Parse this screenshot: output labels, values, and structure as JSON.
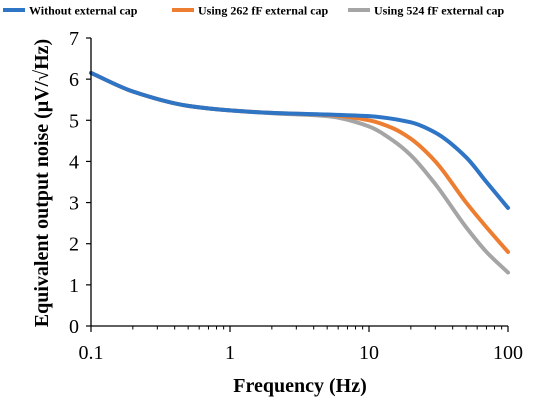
{
  "chart_data": {
    "type": "line",
    "xscale": "log",
    "xlim": [
      0.1,
      100
    ],
    "ylim": [
      0,
      7
    ],
    "xticks": [
      "0.1",
      "1",
      "10",
      "100"
    ],
    "xtick_values": [
      0.1,
      1,
      10,
      100
    ],
    "yticks": [
      "0",
      "1",
      "2",
      "3",
      "4",
      "5",
      "6",
      "7"
    ],
    "ytick_values": [
      0,
      1,
      2,
      3,
      4,
      5,
      6,
      7
    ],
    "xlabel": "Frequency (Hz)",
    "ylabel": "Equivalent output noise (μV/√Hz)",
    "grid": false,
    "legend_position": "top",
    "series": [
      {
        "name": "Without external cap",
        "color": "#2e75c6",
        "x": [
          0.1,
          0.2,
          0.5,
          1,
          2,
          5,
          10,
          20,
          30,
          50,
          70,
          100
        ],
        "y": [
          6.15,
          5.7,
          5.35,
          5.24,
          5.18,
          5.14,
          5.1,
          4.95,
          4.7,
          4.1,
          3.5,
          2.87
        ]
      },
      {
        "name": "Using 262 fF external cap",
        "color": "#ed7d31",
        "x": [
          0.1,
          0.2,
          0.5,
          1,
          2,
          5,
          10,
          15,
          20,
          30,
          50,
          70,
          100
        ],
        "y": [
          6.15,
          5.7,
          5.35,
          5.24,
          5.18,
          5.13,
          5.0,
          4.8,
          4.55,
          4.0,
          3.0,
          2.4,
          1.8
        ]
      },
      {
        "name": "Using 524 fF external cap",
        "color": "#a5a5a5",
        "x": [
          0.1,
          0.2,
          0.5,
          1,
          2,
          5,
          10,
          15,
          20,
          30,
          50,
          70,
          100
        ],
        "y": [
          6.15,
          5.7,
          5.35,
          5.24,
          5.17,
          5.1,
          4.85,
          4.5,
          4.15,
          3.45,
          2.4,
          1.8,
          1.3
        ]
      }
    ]
  }
}
